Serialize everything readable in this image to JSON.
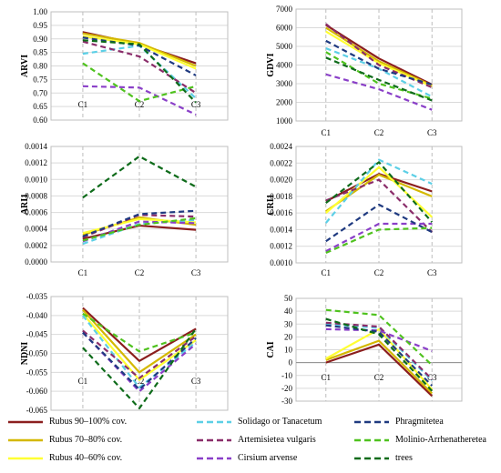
{
  "colors": {
    "rubus90": "#8b1e1e",
    "rubus70": "#d4b800",
    "rubus40": "#ffff33",
    "solidago": "#5ccfe6",
    "artemisia": "#8a2d6a",
    "cirsium": "#8a3fc8",
    "phragmitetea": "#1f3a80",
    "molinio": "#4fc21e",
    "trees": "#0e6b1a"
  },
  "chart_data": [
    {
      "type": "line",
      "panel": "ARVI",
      "ylabel": "ARVI",
      "categories": [
        "C1",
        "C2",
        "C3"
      ],
      "ylim": [
        0.6,
        1.0
      ],
      "ytick_labels": [
        "0.60",
        "0.65",
        "0.70",
        "0.75",
        "0.80",
        "0.85",
        "0.90",
        "0.95",
        "1.00"
      ],
      "series": [
        {
          "key": "rubus90",
          "values": [
            0.925,
            0.88,
            0.81
          ]
        },
        {
          "key": "rubus70",
          "values": [
            0.92,
            0.885,
            0.8
          ]
        },
        {
          "key": "rubus40",
          "values": [
            0.91,
            0.88,
            0.79
          ]
        },
        {
          "key": "solidago",
          "values": [
            0.845,
            0.875,
            0.68
          ]
        },
        {
          "key": "artemisia",
          "values": [
            0.89,
            0.835,
            0.7
          ]
        },
        {
          "key": "cirsium",
          "values": [
            0.725,
            0.72,
            0.62
          ]
        },
        {
          "key": "phragmitetea",
          "values": [
            0.905,
            0.875,
            0.765
          ]
        },
        {
          "key": "molinio",
          "values": [
            0.81,
            0.67,
            0.725
          ]
        },
        {
          "key": "trees",
          "values": [
            0.895,
            0.88,
            0.665
          ]
        }
      ]
    },
    {
      "type": "line",
      "panel": "GDVI",
      "ylabel": "GDVI",
      "categories": [
        "C1",
        "C2",
        "C3"
      ],
      "ylim": [
        1000,
        7000
      ],
      "ytick_labels": [
        "1000",
        "2000",
        "3000",
        "4000",
        "5000",
        "6000",
        "7000"
      ],
      "series": [
        {
          "key": "rubus90",
          "values": [
            6150,
            4350,
            2950
          ]
        },
        {
          "key": "rubus70",
          "values": [
            6000,
            4200,
            2900
          ]
        },
        {
          "key": "rubus40",
          "values": [
            5800,
            4100,
            2850
          ]
        },
        {
          "key": "solidago",
          "values": [
            4900,
            3800,
            2300
          ]
        },
        {
          "key": "artemisia",
          "values": [
            6200,
            4000,
            2800
          ]
        },
        {
          "key": "cirsium",
          "values": [
            3500,
            2700,
            1600
          ]
        },
        {
          "key": "phragmitetea",
          "values": [
            5300,
            3800,
            2950
          ]
        },
        {
          "key": "molinio",
          "values": [
            4700,
            3000,
            2200
          ]
        },
        {
          "key": "trees",
          "values": [
            4400,
            3200,
            2100
          ]
        }
      ]
    },
    {
      "type": "line",
      "panel": "ARI1",
      "ylabel": "ARI1",
      "categories": [
        "C1",
        "C2",
        "C3"
      ],
      "ylim": [
        0,
        0.0014
      ],
      "ytick_labels": [
        "0.0000",
        "0.0002",
        "0.0004",
        "0.0006",
        "0.0008",
        "0.0010",
        "0.0012",
        "0.0014"
      ],
      "series": [
        {
          "key": "rubus90",
          "values": [
            0.00028,
            0.00044,
            0.00039
          ]
        },
        {
          "key": "rubus70",
          "values": [
            0.00033,
            0.00054,
            0.00045
          ]
        },
        {
          "key": "rubus40",
          "values": [
            0.00035,
            0.00052,
            0.00048
          ]
        },
        {
          "key": "solidago",
          "values": [
            0.00022,
            0.00046,
            0.00051
          ]
        },
        {
          "key": "artemisia",
          "values": [
            0.0003,
            0.00057,
            0.00055
          ]
        },
        {
          "key": "cirsium",
          "values": [
            0.00025,
            0.00049,
            0.00047
          ]
        },
        {
          "key": "phragmitetea",
          "values": [
            0.00031,
            0.00058,
            0.00062
          ]
        },
        {
          "key": "molinio",
          "values": [
            0.00026,
            0.00045,
            0.00053
          ]
        },
        {
          "key": "trees",
          "values": [
            0.00078,
            0.00128,
            0.00091
          ]
        }
      ]
    },
    {
      "type": "line",
      "panel": "CRI1",
      "ylabel": "CRI1",
      "categories": [
        "C1",
        "C2",
        "C3"
      ],
      "ylim": [
        0.001,
        0.0024
      ],
      "ytick_labels": [
        "0.0010",
        "0.0012",
        "0.0014",
        "0.0016",
        "0.0018",
        "0.0020",
        "0.0022",
        "0.0024"
      ],
      "series": [
        {
          "key": "rubus90",
          "values": [
            0.00174,
            0.00207,
            0.00186
          ]
        },
        {
          "key": "rubus70",
          "values": [
            0.00162,
            0.00206,
            0.0018
          ]
        },
        {
          "key": "rubus40",
          "values": [
            0.0016,
            0.00215,
            0.00155
          ]
        },
        {
          "key": "solidago",
          "values": [
            0.00148,
            0.00224,
            0.00195
          ]
        },
        {
          "key": "artemisia",
          "values": [
            0.00175,
            0.002,
            0.00137
          ]
        },
        {
          "key": "cirsium",
          "values": [
            0.00114,
            0.00147,
            0.00147
          ]
        },
        {
          "key": "phragmitetea",
          "values": [
            0.00126,
            0.0017,
            0.00137
          ]
        },
        {
          "key": "molinio",
          "values": [
            0.00112,
            0.0014,
            0.00142
          ]
        },
        {
          "key": "trees",
          "values": [
            0.00172,
            0.00221,
            0.00149
          ]
        }
      ]
    },
    {
      "type": "line",
      "panel": "NDNI",
      "ylabel": "NDNI",
      "categories": [
        "C1",
        "C2",
        "C3"
      ],
      "ylim": [
        -0.065,
        -0.035
      ],
      "ytick_labels": [
        "-0.065",
        "-0.060",
        "-0.055",
        "-0.050",
        "-0.045",
        "-0.040",
        "-0.035"
      ],
      "series": [
        {
          "key": "rubus90",
          "values": [
            -0.038,
            -0.052,
            -0.0435
          ]
        },
        {
          "key": "rubus70",
          "values": [
            -0.0385,
            -0.055,
            -0.045
          ]
        },
        {
          "key": "rubus40",
          "values": [
            -0.0395,
            -0.057,
            -0.0465
          ]
        },
        {
          "key": "solidago",
          "values": [
            -0.04,
            -0.059,
            -0.047
          ]
        },
        {
          "key": "artemisia",
          "values": [
            -0.044,
            -0.0565,
            -0.0455
          ]
        },
        {
          "key": "cirsium",
          "values": [
            -0.0445,
            -0.06,
            -0.0475
          ]
        },
        {
          "key": "phragmitetea",
          "values": [
            -0.0445,
            -0.0595,
            -0.046
          ]
        },
        {
          "key": "molinio",
          "values": [
            -0.0395,
            -0.0495,
            -0.0445
          ]
        },
        {
          "key": "trees",
          "values": [
            -0.0485,
            -0.0645,
            -0.0435
          ]
        }
      ]
    },
    {
      "type": "line",
      "panel": "CAI",
      "ylabel": "CAI",
      "categories": [
        "C1",
        "C2",
        "C3"
      ],
      "ylim": [
        -30,
        50
      ],
      "ytick_labels": [
        "-30",
        "-20",
        "-10",
        "0",
        "10",
        "20",
        "30",
        "40",
        "50"
      ],
      "series": [
        {
          "key": "rubus90",
          "values": [
            0,
            14,
            -26
          ]
        },
        {
          "key": "rubus70",
          "values": [
            2,
            17,
            -24
          ]
        },
        {
          "key": "rubus40",
          "values": [
            3,
            26,
            -21
          ]
        },
        {
          "key": "solidago",
          "values": [
            30,
            27,
            -14
          ]
        },
        {
          "key": "artemisia",
          "values": [
            31,
            28,
            -13
          ]
        },
        {
          "key": "cirsium",
          "values": [
            26,
            25,
            9
          ]
        },
        {
          "key": "phragmitetea",
          "values": [
            29,
            24,
            -18
          ]
        },
        {
          "key": "molinio",
          "values": [
            41,
            37,
            -2
          ]
        },
        {
          "key": "trees",
          "values": [
            34,
            22,
            -22
          ]
        }
      ]
    }
  ],
  "legend": {
    "items": [
      {
        "key": "rubus90",
        "label": "Rubus 90–100% cov.",
        "style": "solid"
      },
      {
        "key": "rubus70",
        "label": "Rubus 70–80% cov.",
        "style": "solid"
      },
      {
        "key": "rubus40",
        "label": "Rubus 40–60% cov.",
        "style": "solid"
      },
      {
        "key": "solidago",
        "label": "Solidago or Tanacetum",
        "style": "dashed"
      },
      {
        "key": "artemisia",
        "label": "Artemisietea vulgaris",
        "style": "dashed"
      },
      {
        "key": "cirsium",
        "label": "Cirsium arvense",
        "style": "dashed"
      },
      {
        "key": "phragmitetea",
        "label": "Phragmitetea",
        "style": "dashed"
      },
      {
        "key": "molinio",
        "label": "Molinio-Arrhenatheretea",
        "style": "dashed"
      },
      {
        "key": "trees",
        "label": "trees",
        "style": "dashed"
      }
    ]
  }
}
